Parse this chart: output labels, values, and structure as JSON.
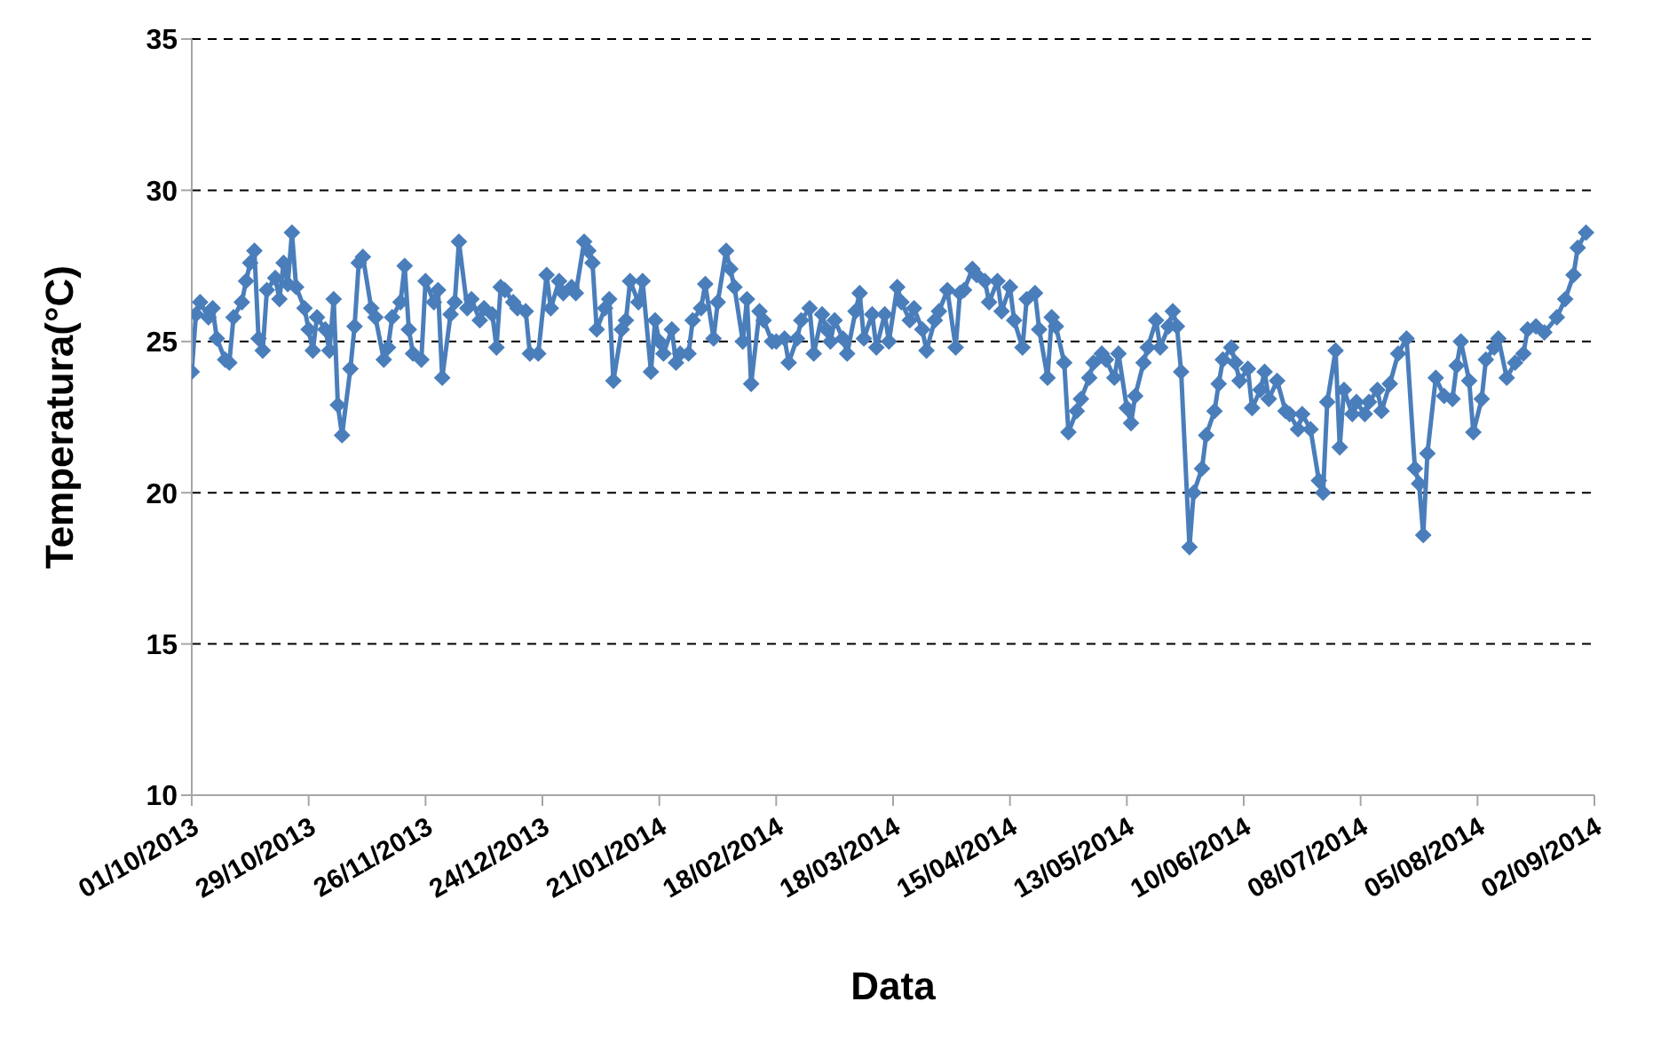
{
  "chart_data": {
    "type": "line",
    "xlabel": "Data",
    "ylabel": "Temperatura(°C)",
    "x": [
      "2013-10-01",
      "2013-10-02",
      "2013-10-03",
      "2013-10-05",
      "2013-10-06",
      "2013-10-07",
      "2013-10-09",
      "2013-10-10",
      "2013-10-11",
      "2013-10-13",
      "2013-10-14",
      "2013-10-15",
      "2013-10-16",
      "2013-10-17",
      "2013-10-18",
      "2013-10-19",
      "2013-10-21",
      "2013-10-22",
      "2013-10-23",
      "2013-10-24",
      "2013-10-25",
      "2013-10-26",
      "2013-10-28",
      "2013-10-29",
      "2013-10-30",
      "2013-10-31",
      "2013-11-02",
      "2013-11-03",
      "2013-11-04",
      "2013-11-05",
      "2013-11-06",
      "2013-11-08",
      "2013-11-09",
      "2013-11-10",
      "2013-11-11",
      "2013-11-13",
      "2013-11-14",
      "2013-11-16",
      "2013-11-17",
      "2013-11-18",
      "2013-11-20",
      "2013-11-21",
      "2013-11-22",
      "2013-11-23",
      "2013-11-25",
      "2013-11-26",
      "2013-11-28",
      "2013-11-29",
      "2013-11-30",
      "2013-12-02",
      "2013-12-03",
      "2013-12-04",
      "2013-12-06",
      "2013-12-07",
      "2013-12-09",
      "2013-12-10",
      "2013-12-12",
      "2013-12-13",
      "2013-12-14",
      "2013-12-15",
      "2013-12-17",
      "2013-12-18",
      "2013-12-20",
      "2013-12-21",
      "2013-12-23",
      "2013-12-25",
      "2013-12-26",
      "2013-12-28",
      "2013-12-29",
      "2013-12-31",
      "2014-01-01",
      "2014-01-03",
      "2014-01-04",
      "2014-01-05",
      "2014-01-06",
      "2014-01-08",
      "2014-01-09",
      "2014-01-10",
      "2014-01-12",
      "2014-01-13",
      "2014-01-14",
      "2014-01-16",
      "2014-01-17",
      "2014-01-19",
      "2014-01-20",
      "2014-01-21",
      "2014-01-22",
      "2014-01-24",
      "2014-01-25",
      "2014-01-26",
      "2014-01-28",
      "2014-01-29",
      "2014-01-31",
      "2014-02-01",
      "2014-02-03",
      "2014-02-04",
      "2014-02-06",
      "2014-02-07",
      "2014-02-08",
      "2014-02-10",
      "2014-02-11",
      "2014-02-12",
      "2014-02-14",
      "2014-02-15",
      "2014-02-17",
      "2014-02-18",
      "2014-02-20",
      "2014-02-21",
      "2014-02-23",
      "2014-02-24",
      "2014-02-26",
      "2014-02-27",
      "2014-03-01",
      "2014-03-02",
      "2014-03-03",
      "2014-03-04",
      "2014-03-06",
      "2014-03-07",
      "2014-03-09",
      "2014-03-10",
      "2014-03-11",
      "2014-03-13",
      "2014-03-14",
      "2014-03-16",
      "2014-03-17",
      "2014-03-19",
      "2014-03-20",
      "2014-03-22",
      "2014-03-23",
      "2014-03-25",
      "2014-03-26",
      "2014-03-28",
      "2014-03-29",
      "2014-03-31",
      "2014-04-02",
      "2014-04-03",
      "2014-04-04",
      "2014-04-06",
      "2014-04-07",
      "2014-04-09",
      "2014-04-10",
      "2014-04-12",
      "2014-04-13",
      "2014-04-15",
      "2014-04-16",
      "2014-04-18",
      "2014-04-19",
      "2014-04-21",
      "2014-04-22",
      "2014-04-24",
      "2014-04-25",
      "2014-04-26",
      "2014-04-28",
      "2014-04-29",
      "2014-05-01",
      "2014-05-02",
      "2014-05-04",
      "2014-05-05",
      "2014-05-07",
      "2014-05-08",
      "2014-05-10",
      "2014-05-11",
      "2014-05-13",
      "2014-05-14",
      "2014-05-15",
      "2014-05-17",
      "2014-05-18",
      "2014-05-20",
      "2014-05-21",
      "2014-05-23",
      "2014-05-24",
      "2014-05-25",
      "2014-05-26",
      "2014-05-28",
      "2014-05-29",
      "2014-05-31",
      "2014-06-01",
      "2014-06-03",
      "2014-06-04",
      "2014-06-05",
      "2014-06-07",
      "2014-06-08",
      "2014-06-09",
      "2014-06-11",
      "2014-06-12",
      "2014-06-14",
      "2014-06-15",
      "2014-06-16",
      "2014-06-18",
      "2014-06-20",
      "2014-06-21",
      "2014-06-23",
      "2014-06-24",
      "2014-06-26",
      "2014-06-28",
      "2014-06-29",
      "2014-06-30",
      "2014-07-02",
      "2014-07-03",
      "2014-07-04",
      "2014-07-06",
      "2014-07-07",
      "2014-07-09",
      "2014-07-10",
      "2014-07-12",
      "2014-07-13",
      "2014-07-15",
      "2014-07-17",
      "2014-07-19",
      "2014-07-21",
      "2014-07-22",
      "2014-07-23",
      "2014-07-24",
      "2014-07-26",
      "2014-07-28",
      "2014-07-30",
      "2014-07-31",
      "2014-08-01",
      "2014-08-03",
      "2014-08-04",
      "2014-08-06",
      "2014-08-07",
      "2014-08-09",
      "2014-08-10",
      "2014-08-12",
      "2014-08-14",
      "2014-08-16",
      "2014-08-17",
      "2014-08-19",
      "2014-08-21",
      "2014-08-24",
      "2014-08-26",
      "2014-08-28",
      "2014-08-29",
      "2014-08-31"
    ],
    "series": [
      {
        "color": "#4a7ebb",
        "values": [
          24.0,
          25.9,
          26.3,
          25.8,
          26.1,
          25.1,
          24.4,
          24.3,
          25.8,
          26.3,
          27.0,
          27.6,
          28.0,
          25.1,
          24.7,
          26.7,
          27.1,
          26.4,
          27.6,
          26.9,
          28.6,
          26.8,
          26.1,
          25.4,
          24.7,
          25.8,
          25.4,
          24.7,
          26.4,
          22.9,
          21.9,
          24.1,
          25.5,
          27.6,
          27.8,
          26.1,
          25.8,
          24.4,
          24.8,
          25.8,
          26.3,
          27.5,
          25.4,
          24.6,
          24.4,
          27.0,
          26.3,
          26.7,
          23.8,
          25.9,
          26.3,
          28.3,
          26.1,
          26.4,
          25.7,
          26.1,
          25.9,
          24.8,
          26.8,
          26.7,
          26.3,
          26.1,
          26.0,
          24.6,
          24.6,
          27.2,
          26.1,
          27.0,
          26.6,
          26.8,
          26.6,
          28.3,
          28.0,
          27.6,
          25.4,
          26.1,
          26.4,
          23.7,
          25.4,
          25.7,
          27.0,
          26.3,
          27.0,
          24.0,
          25.7,
          25.0,
          24.6,
          25.4,
          24.3,
          24.6,
          24.6,
          25.7,
          26.1,
          26.9,
          25.1,
          26.3,
          28.0,
          27.4,
          26.8,
          25.0,
          26.4,
          23.6,
          26.0,
          25.7,
          25.0,
          25.0,
          25.1,
          24.3,
          25.1,
          25.7,
          26.1,
          24.6,
          25.9,
          25.4,
          25.0,
          25.7,
          25.1,
          24.6,
          26.0,
          26.6,
          25.1,
          25.9,
          24.8,
          25.9,
          25.0,
          26.8,
          26.3,
          25.7,
          26.1,
          25.4,
          24.7,
          25.7,
          26.0,
          26.7,
          24.8,
          26.6,
          26.7,
          27.4,
          27.2,
          27.0,
          26.3,
          27.0,
          26.0,
          26.8,
          25.7,
          24.8,
          26.4,
          26.6,
          25.4,
          23.8,
          25.8,
          25.5,
          24.3,
          22.0,
          22.7,
          23.1,
          23.8,
          24.3,
          24.6,
          24.4,
          23.8,
          24.6,
          22.8,
          22.3,
          23.2,
          24.3,
          24.8,
          25.7,
          24.8,
          25.5,
          26.0,
          25.5,
          24.0,
          18.2,
          20.0,
          20.8,
          21.9,
          22.7,
          23.6,
          24.4,
          24.8,
          24.3,
          23.7,
          24.1,
          22.8,
          23.4,
          24.0,
          23.1,
          23.7,
          22.7,
          22.6,
          22.1,
          22.6,
          22.1,
          20.4,
          20.0,
          23.0,
          24.7,
          21.5,
          23.4,
          22.6,
          23.0,
          22.6,
          23.0,
          23.4,
          22.7,
          23.6,
          24.6,
          25.1,
          20.8,
          20.3,
          18.6,
          21.3,
          23.8,
          23.2,
          23.1,
          24.2,
          25.0,
          23.7,
          22.0,
          23.1,
          24.4,
          24.8,
          25.1,
          23.8,
          24.3,
          24.6,
          25.4,
          25.5,
          25.3,
          25.8,
          26.4,
          27.2,
          28.1,
          28.6
        ]
      }
    ],
    "xlim": [
      "2013-10-01",
      "2014-09-02"
    ],
    "xticks": [
      {
        "value": "2013-10-01",
        "label": "01/10/2013"
      },
      {
        "value": "2013-10-29",
        "label": "29/10/2013"
      },
      {
        "value": "2013-11-26",
        "label": "26/11/2013"
      },
      {
        "value": "2013-12-24",
        "label": "24/12/2013"
      },
      {
        "value": "2014-01-21",
        "label": "21/01/2014"
      },
      {
        "value": "2014-02-18",
        "label": "18/02/2014"
      },
      {
        "value": "2014-03-18",
        "label": "18/03/2014"
      },
      {
        "value": "2014-04-15",
        "label": "15/04/2014"
      },
      {
        "value": "2014-05-13",
        "label": "13/05/2014"
      },
      {
        "value": "2014-06-10",
        "label": "10/06/2014"
      },
      {
        "value": "2014-07-08",
        "label": "08/07/2014"
      },
      {
        "value": "2014-08-05",
        "label": "05/08/2014"
      },
      {
        "value": "2014-09-02",
        "label": "02/09/2014"
      }
    ],
    "ylim": [
      10,
      35
    ],
    "yticks": [
      10,
      15,
      20,
      25,
      30,
      35
    ],
    "grid": "y",
    "marker": "diamond",
    "line_style": "solid"
  }
}
